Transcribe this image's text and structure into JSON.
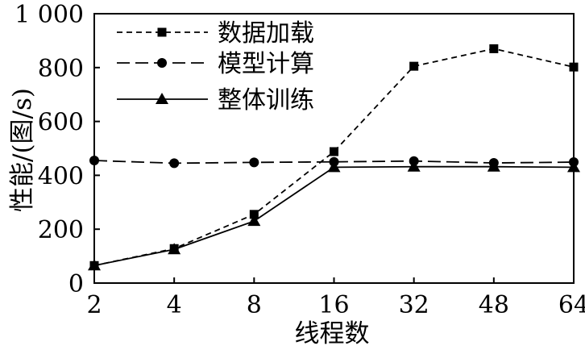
{
  "chart_data": {
    "type": "line",
    "title": "",
    "xlabel": "线程数",
    "ylabel": "性能/(图/s)",
    "categories": [
      "2",
      "4",
      "8",
      "16",
      "32",
      "48",
      "64"
    ],
    "ylim": [
      0,
      1000
    ],
    "y_ticks": [
      0,
      200,
      400,
      600,
      800,
      1000
    ],
    "y_tick_labels": [
      "0",
      "200",
      "400",
      "600",
      "800",
      "1 000"
    ],
    "grid": false,
    "legend_position": "top-left",
    "series": [
      {
        "name": "数据加载",
        "marker": "square",
        "dash": "short",
        "values": [
          65,
          128,
          255,
          488,
          805,
          870,
          802
        ]
      },
      {
        "name": "模型计算",
        "marker": "circle",
        "dash": "long",
        "values": [
          455,
          445,
          448,
          450,
          453,
          446,
          449
        ]
      },
      {
        "name": "整体训练",
        "marker": "triangle",
        "dash": "solid",
        "values": [
          65,
          125,
          230,
          430,
          432,
          432,
          430
        ]
      }
    ]
  }
}
